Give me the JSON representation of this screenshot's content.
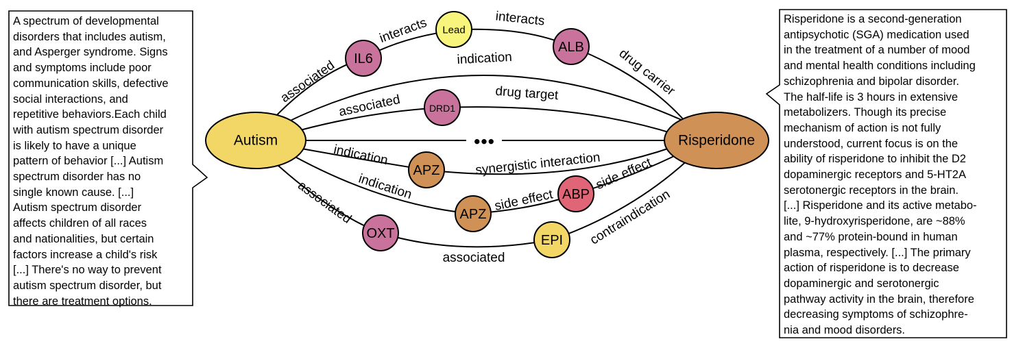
{
  "colors": {
    "yellow": "#F2D666",
    "orange": "#CF9156",
    "pink": "#C9729B",
    "red": "#E06677",
    "bright_yellow": "#F8F57C"
  },
  "nodes": {
    "autism": "Autism",
    "risperidone": "Risperidone",
    "il6": "IL6",
    "lead": "Lead",
    "alb": "ALB",
    "drd1": "DRD1",
    "apz_upper": "APZ",
    "apz_lower": "APZ",
    "abp": "ABP",
    "oxt": "OXT",
    "epi": "EPI",
    "ellipsis": "●●●"
  },
  "edges": {
    "autism_il6": "associated",
    "il6_lead": "interacts",
    "lead_alb": "interacts",
    "alb_risperidone": "drug carrier",
    "autism_risperidone_indication": "indication",
    "autism_drd1": "associated",
    "drd1_risperidone": "drug target",
    "autism_apz_upper": "indication",
    "apz_risperidone": "synergistic interaction",
    "autism_apz_lower": "indication",
    "apz_abp": "side effect",
    "abp_risperidone": "side effect",
    "autism_oxt": "associated",
    "oxt_epi": "associated",
    "epi_risperidone": "contraindication"
  },
  "descriptions": {
    "autism": "A spectrum of developmental\ndisorders that includes autism,\nand Asperger syndrome. Signs\nand symptoms include poor\ncommunication skills, defective\nsocial interactions, and\nrepetitive behaviors.Each child\nwith autism spectrum disorder\nis likely to have a unique\npattern of behavior [...] Autism\nspectrum disorder has no\nsingle known cause. [...]\nAutism spectrum disorder\naffects children of all races\nand nationalities, but certain\nfactors increase a child's risk\n[...] There's no way to prevent\nautism spectrum disorder, but\nthere are treatment options.",
    "risperidone": "Risperidone is a second-generation\nantipsychotic (SGA) medication used\nin the treatment of a number of mood\nand mental health conditions including\nschizophrenia and bipolar disorder.\nThe half-life is 3 hours in extensive\nmetabolizers. Though its precise\nmechanism of action is not fully\nunderstood, current focus is on the\nability of risperidone to inhibit the D2\ndopaminergic receptors and 5-HT2A\nserotonergic receptors in the brain.\n[...] Risperidone and its active metabo-\nlite, 9-hydroxyrisperidone, are ~88%\nand ~77% protein-bound in human\nplasma, respectively. [...] The primary\naction of risperidone is to decrease\ndopaminergic and serotonergic\npathway activity in the brain, therefore\ndecreasing symptoms of schizophre-\nnia and mood disorders."
  }
}
